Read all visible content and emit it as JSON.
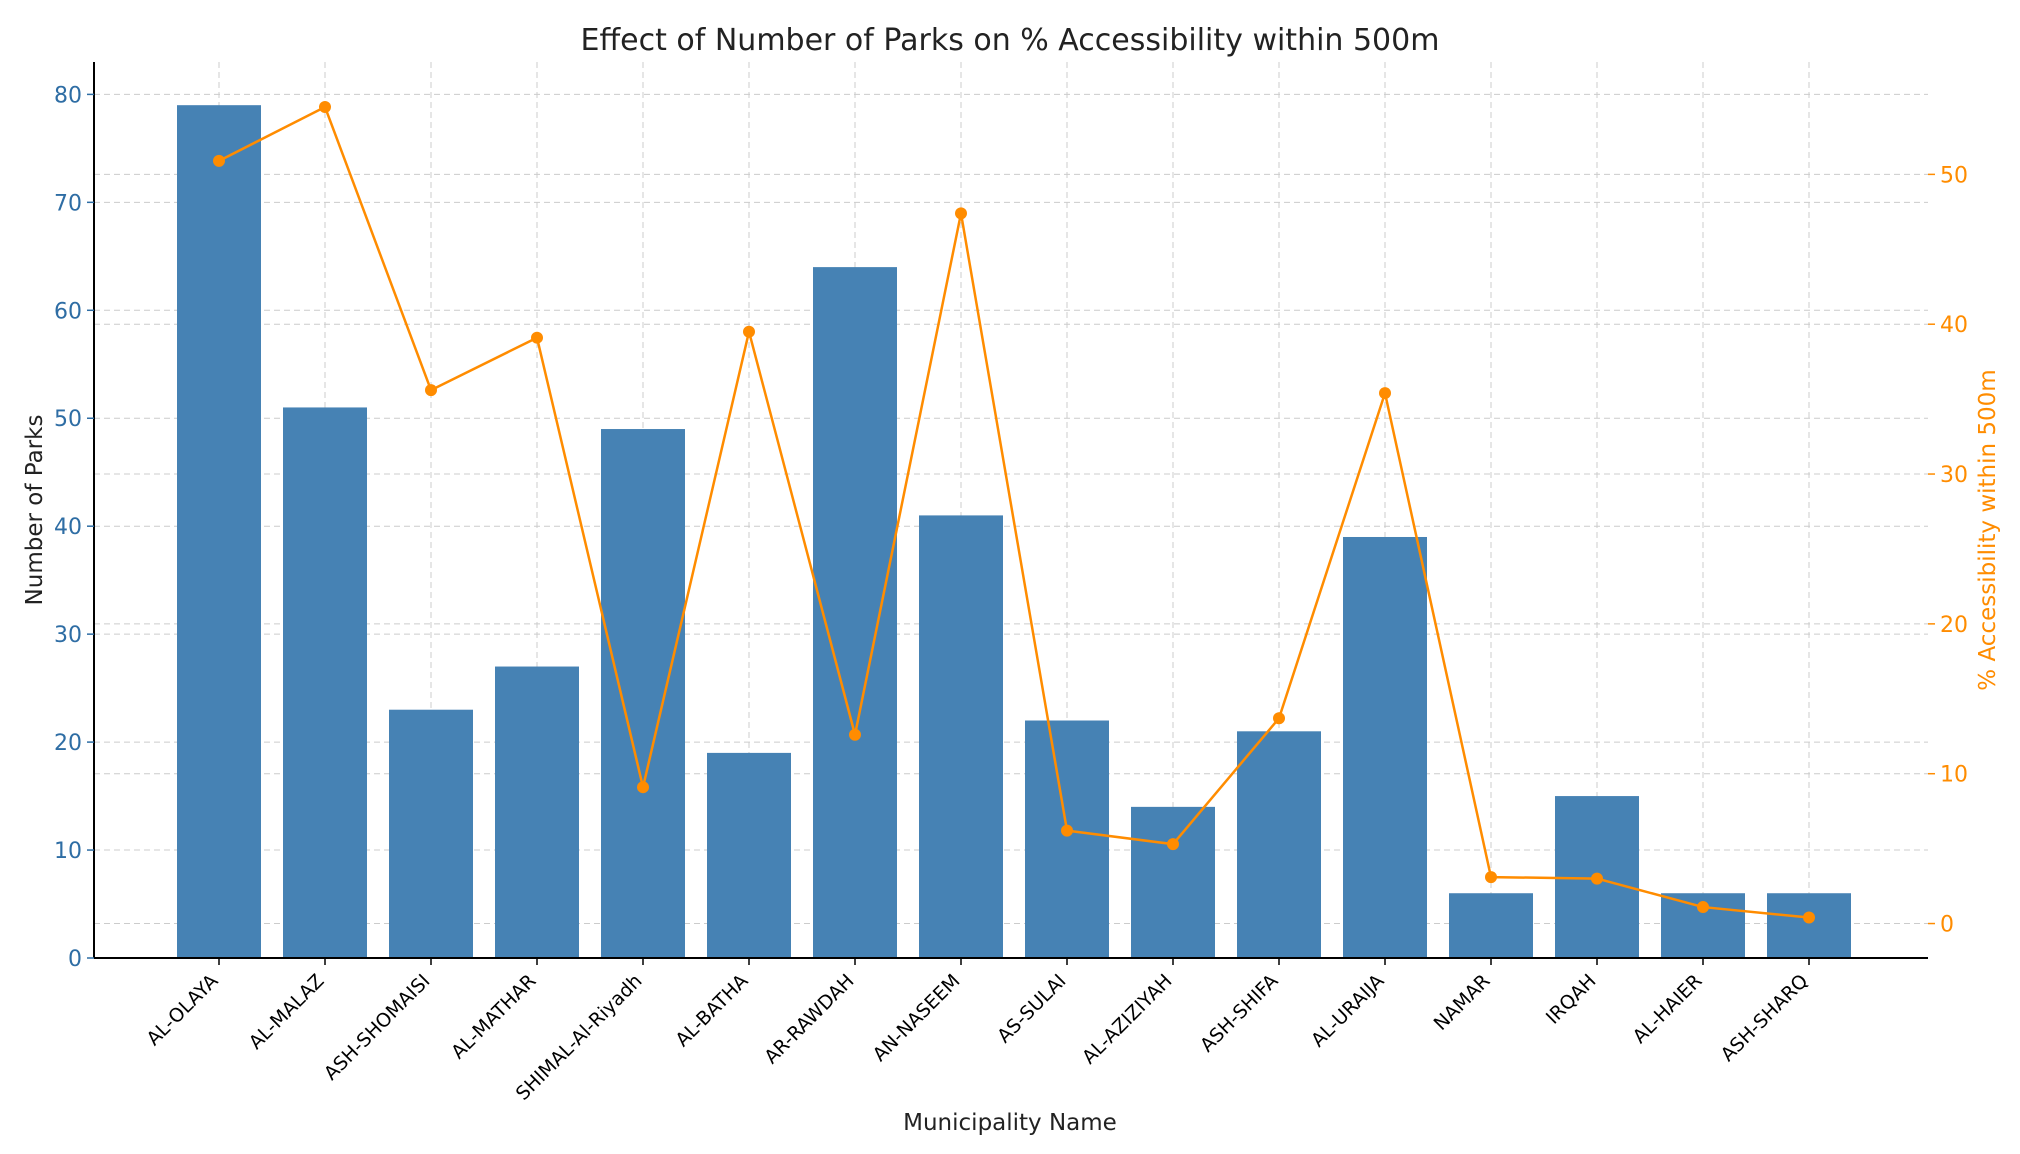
{
  "chart_data": {
    "type": "bar",
    "title": "Effect of Number of Parks on % Accessibility within 500m",
    "xlabel": "Municipality Name",
    "ylabel": "Number of Parks",
    "y2label": "% Accessibility within 500m",
    "categories": [
      "AL-OLAYA",
      "AL-MALAZ",
      "ASH-SHOMAISI",
      "AL-MATHAR",
      "SHIMAL-Al-Riyadh",
      "AL-BATHA",
      "AR-RAWDAH",
      "AN-NASEEM",
      "AS-SULAI",
      "AL-AZIZIYAH",
      "ASH-SHIFA",
      "AL-URAIJA",
      "NAMAR",
      "IRQAH",
      "AL-HAIER",
      "ASH-SHARQ"
    ],
    "ylim": [
      0,
      83
    ],
    "yticks": [
      0,
      10,
      20,
      30,
      40,
      50,
      60,
      70,
      80
    ],
    "y2lim": [
      -2.3,
      57.5
    ],
    "y2ticks": [
      0,
      10,
      20,
      30,
      40,
      50
    ],
    "grid": true,
    "series": [
      {
        "name": "Number of Parks",
        "type": "bar",
        "axis": "left",
        "color": "#4682B4",
        "values": [
          79,
          51,
          23,
          27,
          49,
          19,
          64,
          41,
          22,
          14,
          21,
          39,
          6,
          15,
          6,
          6
        ]
      },
      {
        "name": "% Accessibility within 500m",
        "type": "line",
        "axis": "right",
        "color": "#FF8C00",
        "values": [
          50.9,
          54.5,
          35.6,
          39.1,
          9.1,
          39.5,
          12.6,
          47.4,
          6.2,
          5.3,
          13.7,
          35.4,
          3.1,
          3.0,
          1.1,
          0.4
        ]
      }
    ]
  },
  "colors": {
    "left_axis": "#2E6DA4",
    "right_axis": "#FF8C00",
    "text": "#222222",
    "grid": "#cccccc"
  }
}
